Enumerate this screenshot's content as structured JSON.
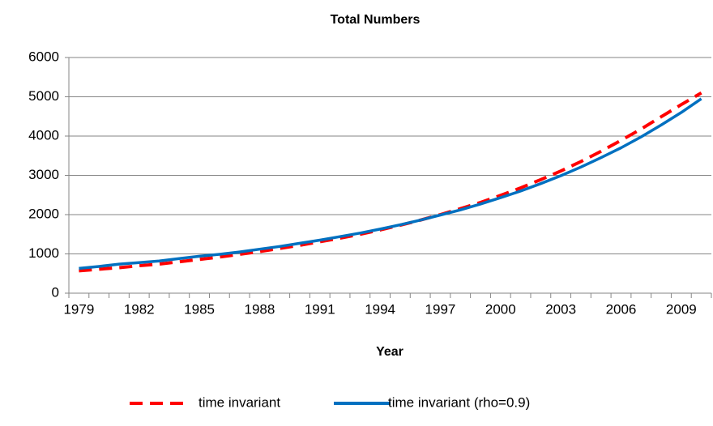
{
  "chart_data": {
    "type": "line",
    "title": "Total Numbers",
    "x_label": "Year",
    "categories": [
      "1979",
      null,
      null,
      "1982",
      null,
      null,
      "1985",
      null,
      null,
      "1988",
      null,
      null,
      "1991",
      null,
      null,
      "1994",
      null,
      null,
      "1997",
      null,
      null,
      "2000",
      null,
      null,
      "2003",
      null,
      null,
      "2006",
      null,
      null,
      "2009",
      null
    ],
    "series": [
      {
        "name": "time invariant",
        "color": "#ff0000",
        "dash": true,
        "values": [
          570,
          610,
          650,
          700,
          740,
          800,
          860,
          920,
          990,
          1060,
          1140,
          1220,
          1310,
          1400,
          1500,
          1610,
          1730,
          1860,
          2000,
          2150,
          2310,
          2490,
          2680,
          2890,
          3110,
          3350,
          3610,
          3890,
          4180,
          4490,
          4800,
          5100
        ]
      },
      {
        "name": "time invariant (rho=0.9)",
        "color": "#0070c0",
        "dash": false,
        "values": [
          630,
          680,
          740,
          780,
          820,
          880,
          940,
          990,
          1050,
          1120,
          1190,
          1270,
          1350,
          1440,
          1530,
          1630,
          1740,
          1860,
          1990,
          2120,
          2270,
          2430,
          2600,
          2790,
          2990,
          3210,
          3450,
          3700,
          3980,
          4280,
          4600,
          4950
        ]
      }
    ],
    "ylim": [
      0,
      6000
    ],
    "yticks": [
      0,
      1000,
      2000,
      3000,
      4000,
      5000,
      6000
    ],
    "grid": true,
    "legend": "bottom"
  }
}
